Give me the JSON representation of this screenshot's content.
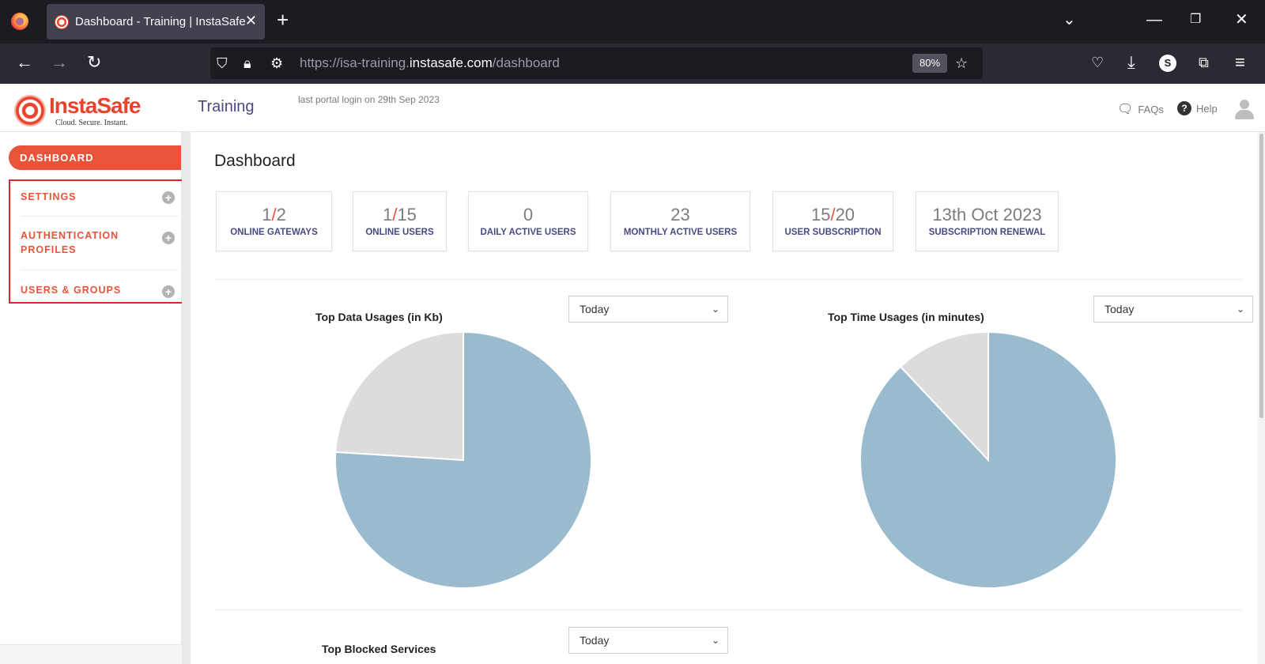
{
  "browser": {
    "tab_title": "Dashboard - Training | InstaSafe",
    "url_prefix": "https://isa-training.",
    "url_host": "instasafe.com",
    "url_path": "/dashboard",
    "zoom": "80%",
    "account_initial": "S"
  },
  "header": {
    "logo_text": "InstaSafe",
    "logo_tagline": "Cloud. Secure. Instant.",
    "portal_name": "Training",
    "last_login": "last portal login on 29th Sep 2023",
    "faqs": "FAQs",
    "help": "Help"
  },
  "sidebar": {
    "active": "DASHBOARD",
    "items": [
      {
        "label": "SETTINGS"
      },
      {
        "label": "AUTHENTICATION PROFILES"
      },
      {
        "label": "USERS & GROUPS"
      }
    ]
  },
  "main": {
    "title": "Dashboard",
    "stats": [
      {
        "value_a": "1",
        "value_b": "2",
        "label": "ONLINE GATEWAYS"
      },
      {
        "value_a": "1",
        "value_b": "15",
        "label": "ONLINE USERS"
      },
      {
        "value": "0",
        "label": "DAILY ACTIVE USERS"
      },
      {
        "value": "23",
        "label": "MONTHLY ACTIVE USERS"
      },
      {
        "value_a": "15",
        "value_b": "20",
        "label": "USER SUBSCRIPTION"
      },
      {
        "value": "13th Oct 2023",
        "label": "SUBSCRIPTION RENEWAL"
      }
    ],
    "filters": {
      "data_usage": "Today",
      "time_usage": "Today",
      "blocked_services": "Today"
    },
    "sections": {
      "blocked_title": "Top Blocked Services"
    }
  },
  "chart_data": [
    {
      "type": "pie",
      "title": "Top Data Usages (in Kb)",
      "values": [
        76,
        24
      ],
      "colors": [
        "#9abbcd",
        "#dcdcdc"
      ]
    },
    {
      "type": "pie",
      "title": "Top Time Usages (in minutes)",
      "values": [
        88,
        12
      ],
      "colors": [
        "#9abbcd",
        "#dcdcdc"
      ]
    }
  ]
}
